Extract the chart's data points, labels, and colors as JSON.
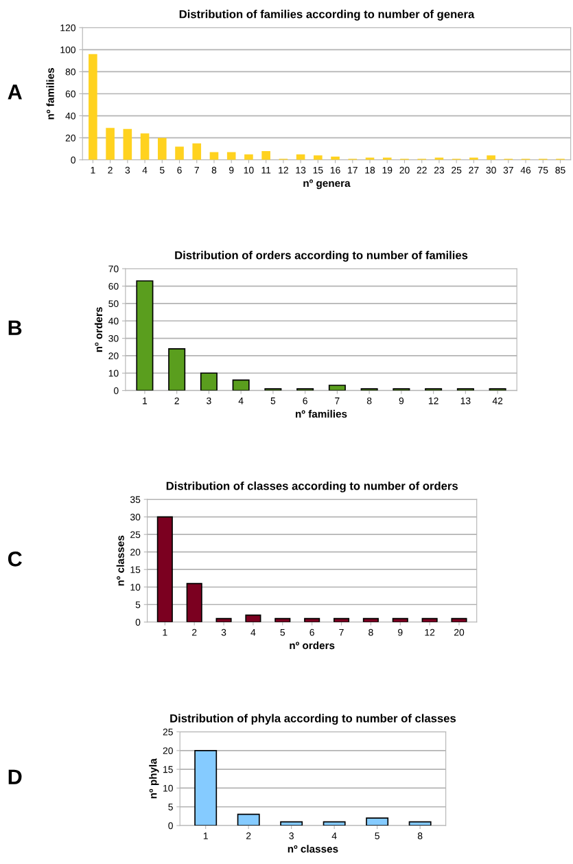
{
  "chart_data": [
    {
      "type": "bar",
      "title": "Distribution of families according to number of genera",
      "xlabel": "nº genera",
      "ylabel": "nº families",
      "annotations": [
        "A"
      ],
      "categories": [
        "1",
        "2",
        "3",
        "4",
        "5",
        "6",
        "7",
        "8",
        "9",
        "10",
        "11",
        "12",
        "13",
        "15",
        "16",
        "17",
        "18",
        "19",
        "20",
        "22",
        "23",
        "25",
        "27",
        "30",
        "37",
        "46",
        "75",
        "85"
      ],
      "values": [
        96,
        29,
        28,
        24,
        20,
        12,
        15,
        7,
        7,
        5,
        8,
        1,
        5,
        4,
        3,
        1,
        2,
        2,
        1,
        1,
        2,
        1,
        2,
        4,
        1,
        1,
        1,
        1
      ],
      "color": "#ffd21f",
      "ylim": [
        0,
        120
      ],
      "yticks": [
        0,
        20,
        40,
        60,
        80,
        100,
        120
      ],
      "grid": "y"
    },
    {
      "type": "bar",
      "title": "Distribution of orders according to number of families",
      "xlabel": "nº families",
      "ylabel": "nº orders",
      "annotations": [
        "B"
      ],
      "categories": [
        "1",
        "2",
        "3",
        "4",
        "5",
        "6",
        "7",
        "8",
        "9",
        "12",
        "13",
        "42"
      ],
      "values": [
        63,
        24,
        10,
        6,
        1,
        1,
        3,
        1,
        1,
        1,
        1,
        1
      ],
      "color": "#5a9e1e",
      "ylim": [
        0,
        70
      ],
      "yticks": [
        0,
        10,
        20,
        30,
        40,
        50,
        60,
        70
      ],
      "grid": "y"
    },
    {
      "type": "bar",
      "title": "Distribution of classes according to number of orders",
      "xlabel": "nº orders",
      "ylabel": "nº classes",
      "annotations": [
        "C"
      ],
      "categories": [
        "1",
        "2",
        "3",
        "4",
        "5",
        "6",
        "7",
        "8",
        "9",
        "12",
        "20"
      ],
      "values": [
        30,
        11,
        1,
        2,
        1,
        1,
        1,
        1,
        1,
        1,
        1
      ],
      "color": "#7b0020",
      "ylim": [
        0,
        35
      ],
      "yticks": [
        0,
        5,
        10,
        15,
        20,
        25,
        30,
        35
      ],
      "grid": "y"
    },
    {
      "type": "bar",
      "title": "Distribution of phyla according to number of classes",
      "xlabel": "nº classes",
      "ylabel": "nº phyla",
      "annotations": [
        "D"
      ],
      "categories": [
        "1",
        "2",
        "3",
        "4",
        "5",
        "8"
      ],
      "values": [
        20,
        3,
        1,
        1,
        2,
        1
      ],
      "color": "#85cbff",
      "ylim": [
        0,
        25
      ],
      "yticks": [
        0,
        5,
        10,
        15,
        20,
        25
      ],
      "grid": "y"
    }
  ]
}
